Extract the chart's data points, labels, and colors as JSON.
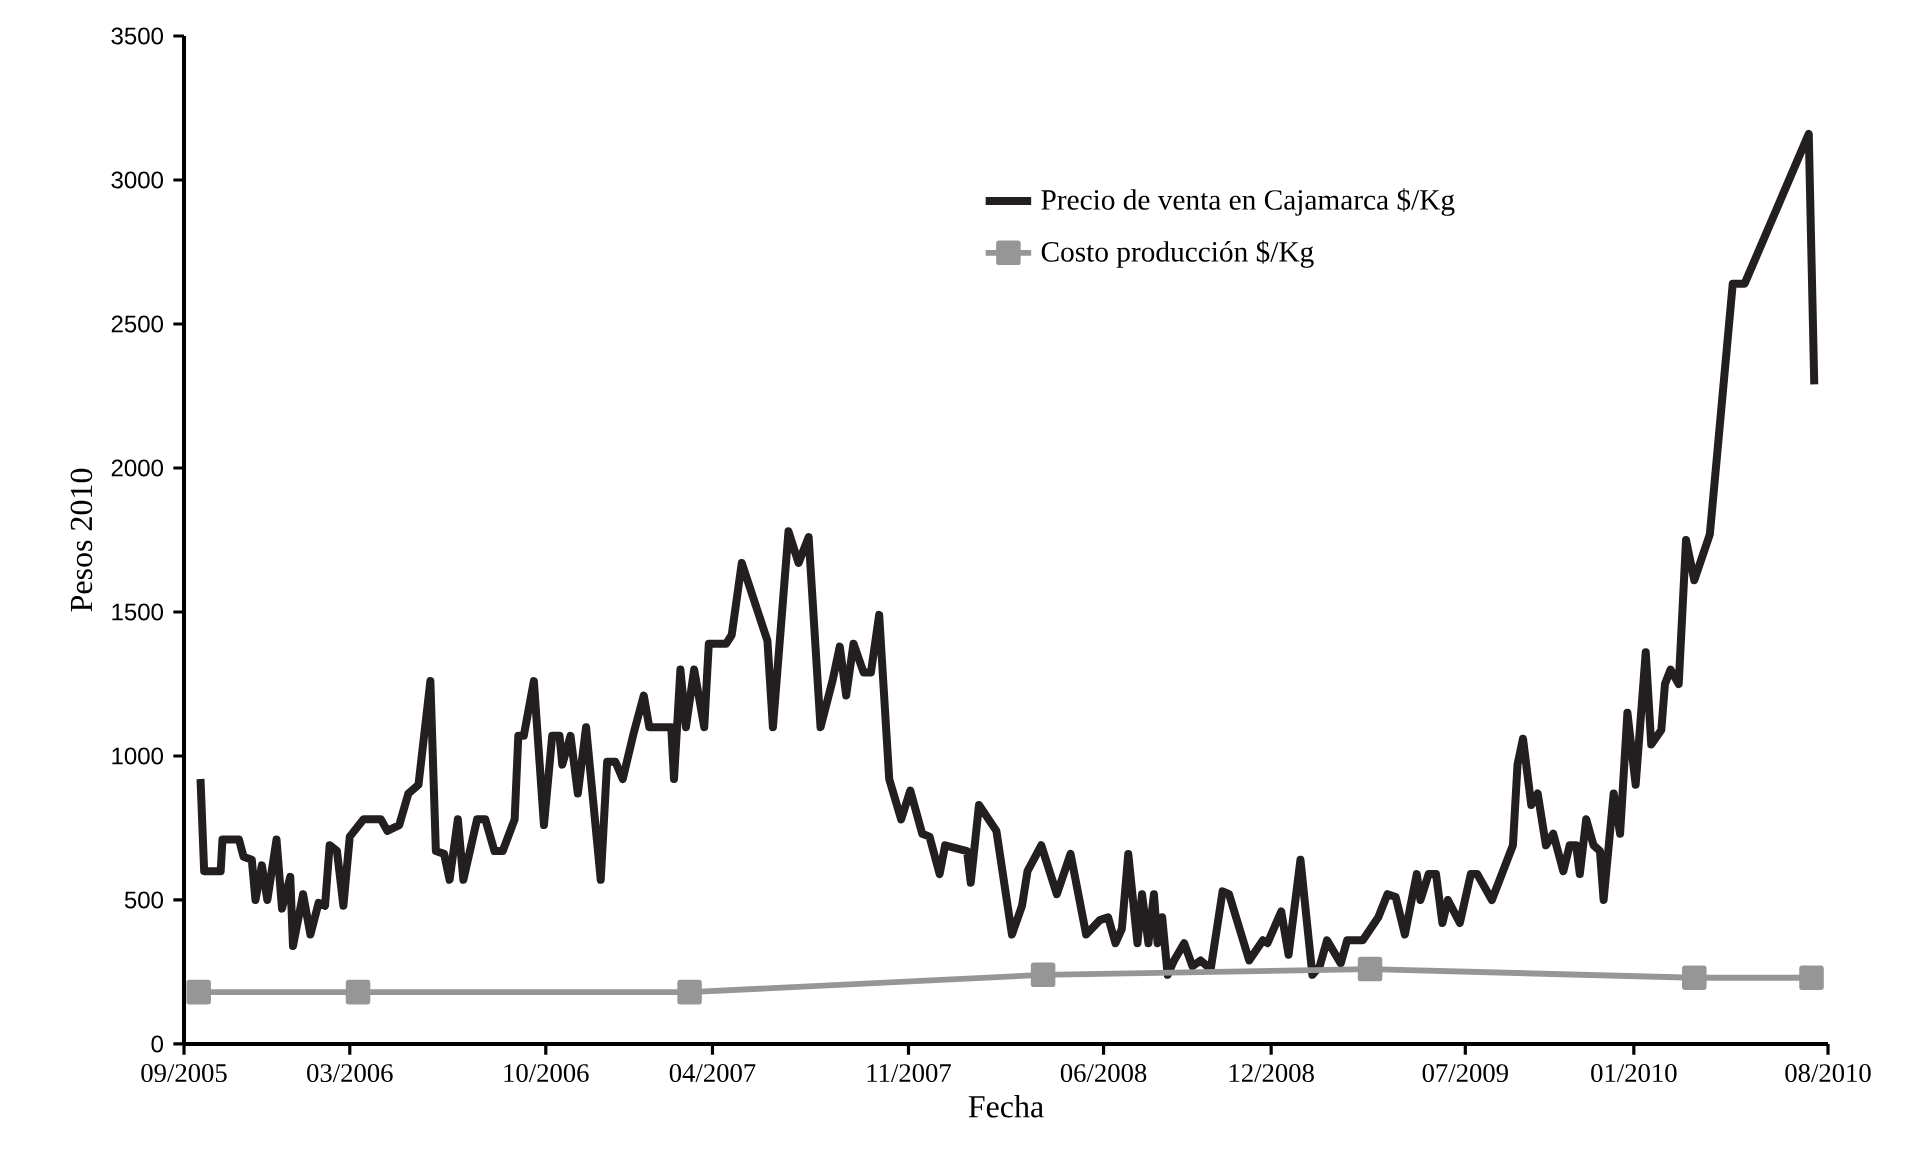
{
  "chart_data": {
    "type": "line",
    "xlabel": "Fecha",
    "ylabel": "Pesos 2010",
    "xlim": [
      "2005-09",
      "2010-08"
    ],
    "xticks": [
      {
        "value": "2005-09",
        "label": "09/2005"
      },
      {
        "value": "2006-03",
        "label": "03/2006"
      },
      {
        "value": "2006-10",
        "label": "10/2006"
      },
      {
        "value": "2007-04",
        "label": "04/2007"
      },
      {
        "value": "2007-11",
        "label": "11/2007"
      },
      {
        "value": "2008-06",
        "label": "06/2008"
      },
      {
        "value": "2008-12",
        "label": "12/2008"
      },
      {
        "value": "2009-07",
        "label": "07/2009"
      },
      {
        "value": "2010-01",
        "label": "01/2010"
      },
      {
        "value": "2010-08",
        "label": "08/2010"
      }
    ],
    "ylim": [
      0,
      3500
    ],
    "yticks": [
      0,
      500,
      1000,
      1500,
      2000,
      2500,
      3000,
      3500
    ],
    "grid": false,
    "legend": "top right",
    "line_style": "solid",
    "series": [
      {
        "name": "Precio de venta en Cajamarca $/Kg",
        "color": "#231f20",
        "marker": "none",
        "x": [
          "2005-09-19",
          "2005-09-23",
          "2005-10-11",
          "2005-10-13",
          "2005-10-31",
          "2005-11-05",
          "2005-11-14",
          "2005-11-18",
          "2005-11-25",
          "2005-12-01",
          "2005-12-11",
          "2005-12-17",
          "2005-12-26",
          "2005-12-29",
          "2006-01-09",
          "2006-01-17",
          "2006-01-26",
          "2006-02-02",
          "2006-02-07",
          "2006-02-15",
          "2006-02-22",
          "2006-03-01",
          "2006-03-16",
          "2006-04-04",
          "2006-04-11",
          "2006-04-24",
          "2006-05-04",
          "2006-05-15",
          "2006-05-28",
          "2006-06-03",
          "2006-06-12",
          "2006-06-18",
          "2006-06-27",
          "2006-07-03",
          "2006-07-18",
          "2006-07-27",
          "2006-08-06",
          "2006-08-15",
          "2006-08-28",
          "2006-09-01",
          "2006-09-07",
          "2006-09-18",
          "2006-09-29",
          "2006-10-08",
          "2006-10-16",
          "2006-10-19",
          "2006-10-28",
          "2006-11-05",
          "2006-11-14",
          "2006-11-30",
          "2006-12-07",
          "2006-12-16",
          "2006-12-24",
          "2007-01-05",
          "2007-01-16",
          "2007-01-22",
          "2007-02-15",
          "2007-02-18",
          "2007-02-25",
          "2007-03-03",
          "2007-03-12",
          "2007-03-23",
          "2007-03-28",
          "2007-04-16",
          "2007-04-22",
          "2007-05-03",
          "2007-05-31",
          "2007-06-06",
          "2007-06-23",
          "2007-07-04",
          "2007-07-15",
          "2007-07-28",
          "2007-08-10",
          "2007-08-18",
          "2007-08-25",
          "2007-09-02",
          "2007-09-13",
          "2007-09-21",
          "2007-09-30",
          "2007-10-11",
          "2007-10-24",
          "2007-11-03",
          "2007-11-16",
          "2007-11-24",
          "2007-12-05",
          "2007-12-11",
          "2008-01-04",
          "2008-01-08",
          "2008-01-17",
          "2008-02-05",
          "2008-02-22",
          "2008-03-04",
          "2008-03-10",
          "2008-03-25",
          "2008-04-11",
          "2008-04-26",
          "2008-05-13",
          "2008-05-28",
          "2008-06-06",
          "2008-06-14",
          "2008-06-21",
          "2008-06-28",
          "2008-07-08",
          "2008-07-13",
          "2008-07-20",
          "2008-07-26",
          "2008-07-30",
          "2008-08-04",
          "2008-08-10",
          "2008-08-17",
          "2008-08-28",
          "2008-09-06",
          "2008-09-15",
          "2008-09-26",
          "2008-10-09",
          "2008-10-16",
          "2008-11-07",
          "2008-11-22",
          "2008-11-27",
          "2008-12-12",
          "2008-12-20",
          "2009-01-02",
          "2009-01-15",
          "2009-01-23",
          "2009-01-31",
          "2009-02-15",
          "2009-02-22",
          "2009-03-11",
          "2009-03-28",
          "2009-04-07",
          "2009-04-16",
          "2009-04-26",
          "2009-05-09",
          "2009-05-13",
          "2009-05-22",
          "2009-05-30",
          "2009-06-06",
          "2009-06-12",
          "2009-06-25",
          "2009-07-07",
          "2009-07-14",
          "2009-07-30",
          "2009-08-22",
          "2009-08-27",
          "2009-09-02",
          "2009-09-11",
          "2009-09-18",
          "2009-09-27",
          "2009-10-05",
          "2009-10-16",
          "2009-10-23",
          "2009-10-30",
          "2009-11-03",
          "2009-11-10",
          "2009-11-18",
          "2009-11-25",
          "2009-11-29",
          "2009-12-10",
          "2009-12-17",
          "2009-12-25",
          "2010-01-03",
          "2010-01-14",
          "2010-01-20",
          "2010-01-31",
          "2010-02-04",
          "2010-02-10",
          "2010-02-19",
          "2010-02-27",
          "2010-03-08",
          "2010-03-25",
          "2010-04-19",
          "2010-05-02",
          "2010-07-11",
          "2010-07-17"
        ],
        "values": [
          920,
          600,
          600,
          710,
          710,
          650,
          640,
          500,
          620,
          500,
          710,
          470,
          580,
          340,
          520,
          380,
          490,
          480,
          690,
          670,
          480,
          720,
          780,
          780,
          740,
          760,
          870,
          900,
          1260,
          670,
          660,
          570,
          780,
          570,
          780,
          780,
          670,
          670,
          780,
          1070,
          1070,
          1260,
          760,
          1070,
          1070,
          970,
          1070,
          870,
          1100,
          570,
          980,
          980,
          920,
          1080,
          1210,
          1100,
          1100,
          920,
          1300,
          1100,
          1300,
          1100,
          1390,
          1390,
          1420,
          1670,
          1400,
          1100,
          1780,
          1670,
          1760,
          1100,
          1260,
          1380,
          1210,
          1390,
          1290,
          1290,
          1490,
          920,
          780,
          880,
          730,
          720,
          590,
          690,
          670,
          560,
          830,
          740,
          380,
          480,
          600,
          690,
          520,
          660,
          380,
          430,
          440,
          350,
          400,
          660,
          350,
          520,
          350,
          520,
          350,
          440,
          240,
          290,
          350,
          270,
          290,
          260,
          530,
          520,
          290,
          360,
          350,
          460,
          310,
          640,
          240,
          270,
          360,
          280,
          360,
          360,
          440,
          520,
          510,
          380,
          590,
          500,
          590,
          590,
          420,
          500,
          420,
          590,
          590,
          500,
          690,
          970,
          1060,
          830,
          870,
          690,
          730,
          600,
          690,
          690,
          590,
          780,
          690,
          670,
          500,
          870,
          730,
          1150,
          900,
          1360,
          1040,
          1090,
          1250,
          1300,
          1250,
          1750,
          1610,
          1770,
          2640,
          2640,
          3160,
          2290
        ]
      },
      {
        "name": "Costo producción  $/Kg",
        "color": "#969696",
        "marker": "square",
        "x": [
          "2005-09-17",
          "2006-03-10",
          "2007-03-07",
          "2008-03-27",
          "2009-03-19",
          "2010-03-08",
          "2010-07-14"
        ],
        "values": [
          180,
          180,
          180,
          240,
          260,
          230,
          230
        ]
      }
    ]
  }
}
